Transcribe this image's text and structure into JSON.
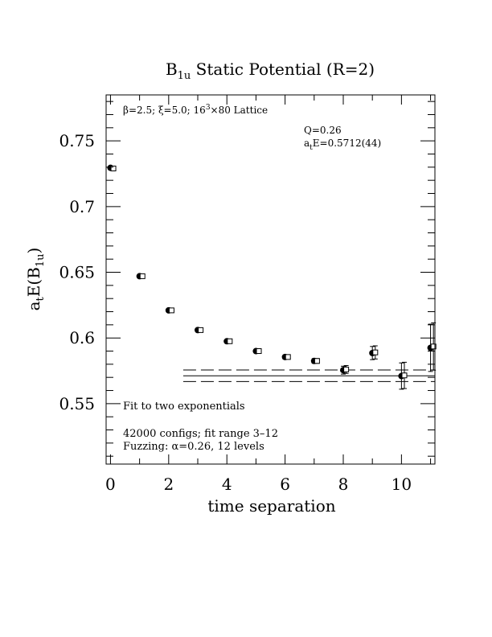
{
  "chart_data": {
    "type": "scatter",
    "title_main": "B",
    "title_sub": "1u",
    "title_rest": " Static Potential (R=2)",
    "xlabel": "time separation",
    "ylabel_parts": {
      "a": "a",
      "t": "t",
      "e": "E(B",
      "sub": "1u",
      "close": ")"
    },
    "xlim": [
      -0.15,
      11.15
    ],
    "ylim": [
      0.504,
      0.785
    ],
    "xticks": [
      0,
      2,
      4,
      6,
      8,
      10
    ],
    "xtick_labels": [
      "0",
      "2",
      "4",
      "6",
      "8",
      "10"
    ],
    "yticks": [
      0.55,
      0.6,
      0.65,
      0.7,
      0.75
    ],
    "ytick_labels": [
      "0.55",
      "0.6",
      "0.65",
      "0.7",
      "0.75"
    ],
    "annotations": {
      "lattice": {
        "beta": "β",
        "p1": "=2.5; ",
        "xi": "ξ",
        "p2": "=5.0; 16",
        "sup": "3",
        "p3": "×80 Lattice"
      },
      "q": "Q=0.26",
      "energy": {
        "a": "a",
        "t": "t",
        "rest": "E=0.5712(44)"
      },
      "fit": "Fit to two exponentials",
      "configs": "42000 configs; fit range 3–12",
      "fuzzing": {
        "p1": "Fuzzing: ",
        "alpha": "α",
        "p2": "=0.26, 12 levels"
      }
    },
    "series": [
      {
        "marker": "filled-circle",
        "x": [
          0,
          1,
          2,
          3,
          4,
          5,
          6,
          7,
          8,
          9,
          10,
          11
        ],
        "y": [
          0.7295,
          0.647,
          0.621,
          0.606,
          0.5975,
          0.59,
          0.5855,
          0.5825,
          0.5755,
          0.5885,
          0.571,
          0.5925
        ],
        "err": [
          0.0005,
          0.0007,
          0.0008,
          0.0009,
          0.001,
          0.0012,
          0.0015,
          0.0018,
          0.003,
          0.005,
          0.01,
          0.018
        ]
      },
      {
        "marker": "open-square",
        "x": [
          0.1,
          1.1,
          2.1,
          3.1,
          4.1,
          5.1,
          6.1,
          7.1,
          8.1,
          9.1,
          10.1,
          11.1
        ],
        "y": [
          0.729,
          0.647,
          0.621,
          0.606,
          0.5975,
          0.59,
          0.5855,
          0.5825,
          0.576,
          0.589,
          0.5715,
          0.5935
        ],
        "err": [
          0.0005,
          0.0007,
          0.0008,
          0.0009,
          0.001,
          0.0012,
          0.0015,
          0.0018,
          0.003,
          0.005,
          0.01,
          0.018
        ]
      }
    ],
    "fit": {
      "x_range": [
        2.5,
        11.15
      ],
      "center": 0.5712,
      "error": 0.0044
    }
  }
}
